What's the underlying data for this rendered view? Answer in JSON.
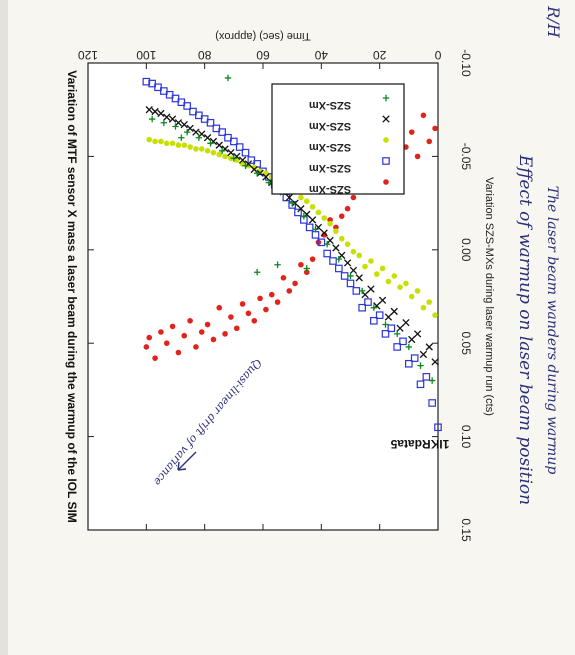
{
  "chart_data": {
    "type": "scatter",
    "rotation_degrees": 180,
    "title": "Variation of MTF sensor X mass a laser beam during the warmup of the IOL SIM",
    "subtitle": "1IKRdata5",
    "xlabel": "Time (sec) (approx)",
    "ylabel": "Variation SZS-MXs during laser warmup run (cts)",
    "xlim": [
      0,
      120
    ],
    "ylim": [
      -0.1,
      0.15
    ],
    "x_ticks": [
      "0",
      "20",
      "40",
      "60",
      "80",
      "100",
      "120"
    ],
    "y_ticks": [
      "-0.10",
      "-0.05",
      "0.00",
      "0.05",
      "0.10",
      "0.15"
    ],
    "grid": false,
    "legend_position": "top-right",
    "series": [
      {
        "name": "SZS-Xm",
        "marker": "circle",
        "color": "#e0241b",
        "points": [
          [
            1,
            -0.065
          ],
          [
            3,
            -0.058
          ],
          [
            5,
            -0.072
          ],
          [
            7,
            -0.05
          ],
          [
            9,
            -0.063
          ],
          [
            11,
            -0.055
          ],
          [
            13,
            -0.068
          ],
          [
            15,
            -0.047
          ],
          [
            17,
            -0.058
          ],
          [
            19,
            -0.042
          ],
          [
            21,
            -0.052
          ],
          [
            23,
            -0.038
          ],
          [
            25,
            -0.046
          ],
          [
            27,
            -0.035
          ],
          [
            29,
            -0.028
          ],
          [
            31,
            -0.022
          ],
          [
            33,
            -0.018
          ],
          [
            35,
            -0.012
          ],
          [
            37,
            -0.016
          ],
          [
            39,
            -0.008
          ],
          [
            41,
            -0.004
          ],
          [
            43,
            0.005
          ],
          [
            45,
            0.012
          ],
          [
            47,
            0.008
          ],
          [
            49,
            0.018
          ],
          [
            51,
            0.022
          ],
          [
            53,
            0.015
          ],
          [
            55,
            0.028
          ],
          [
            57,
            0.024
          ],
          [
            59,
            0.032
          ],
          [
            61,
            0.026
          ],
          [
            63,
            0.038
          ],
          [
            65,
            0.034
          ],
          [
            67,
            0.029
          ],
          [
            69,
            0.042
          ],
          [
            71,
            0.036
          ],
          [
            73,
            0.045
          ],
          [
            75,
            0.031
          ],
          [
            77,
            0.048
          ],
          [
            79,
            0.04
          ],
          [
            81,
            0.044
          ],
          [
            83,
            0.052
          ],
          [
            85,
            0.038
          ],
          [
            87,
            0.046
          ],
          [
            89,
            0.055
          ],
          [
            91,
            0.041
          ],
          [
            93,
            0.05
          ],
          [
            95,
            0.044
          ],
          [
            97,
            0.058
          ],
          [
            99,
            0.047
          ],
          [
            100,
            0.052
          ]
        ]
      },
      {
        "name": "SZS-Xm",
        "marker": "square",
        "color": "#2a35d8",
        "points": [
          [
            0,
            0.095
          ],
          [
            2,
            0.082
          ],
          [
            4,
            0.068
          ],
          [
            6,
            0.072
          ],
          [
            8,
            0.058
          ],
          [
            10,
            0.061
          ],
          [
            12,
            0.049
          ],
          [
            14,
            0.052
          ],
          [
            16,
            0.042
          ],
          [
            18,
            0.045
          ],
          [
            20,
            0.035
          ],
          [
            22,
            0.038
          ],
          [
            24,
            0.028
          ],
          [
            26,
            0.031
          ],
          [
            28,
            0.022
          ],
          [
            30,
            0.018
          ],
          [
            32,
            0.014
          ],
          [
            34,
            0.01
          ],
          [
            36,
            0.006
          ],
          [
            38,
            0.002
          ],
          [
            40,
            -0.004
          ],
          [
            42,
            -0.008
          ],
          [
            44,
            -0.012
          ],
          [
            46,
            -0.016
          ],
          [
            48,
            -0.02
          ],
          [
            50,
            -0.024
          ],
          [
            52,
            -0.028
          ],
          [
            54,
            -0.032
          ],
          [
            56,
            -0.035
          ],
          [
            58,
            -0.039
          ],
          [
            60,
            -0.042
          ],
          [
            62,
            -0.046
          ],
          [
            64,
            -0.048
          ],
          [
            66,
            -0.052
          ],
          [
            68,
            -0.055
          ],
          [
            70,
            -0.058
          ],
          [
            72,
            -0.06
          ],
          [
            74,
            -0.063
          ],
          [
            76,
            -0.065
          ],
          [
            78,
            -0.068
          ],
          [
            80,
            -0.07
          ],
          [
            82,
            -0.072
          ],
          [
            84,
            -0.074
          ],
          [
            86,
            -0.077
          ],
          [
            88,
            -0.079
          ],
          [
            90,
            -0.081
          ],
          [
            92,
            -0.083
          ],
          [
            94,
            -0.085
          ],
          [
            96,
            -0.087
          ],
          [
            98,
            -0.089
          ],
          [
            100,
            -0.09
          ]
        ]
      },
      {
        "name": "SZS-Xm",
        "marker": "circle",
        "color": "#c8e000",
        "points": [
          [
            1,
            0.035
          ],
          [
            3,
            0.028
          ],
          [
            5,
            0.031
          ],
          [
            7,
            0.022
          ],
          [
            9,
            0.025
          ],
          [
            11,
            0.018
          ],
          [
            13,
            0.02
          ],
          [
            15,
            0.014
          ],
          [
            17,
            0.017
          ],
          [
            19,
            0.01
          ],
          [
            21,
            0.013
          ],
          [
            23,
            0.006
          ],
          [
            25,
            0.009
          ],
          [
            27,
            0.003
          ],
          [
            29,
            0.001
          ],
          [
            31,
            -0.003
          ],
          [
            33,
            -0.006
          ],
          [
            35,
            -0.01
          ],
          [
            37,
            -0.014
          ],
          [
            39,
            -0.017
          ],
          [
            41,
            -0.02
          ],
          [
            43,
            -0.023
          ],
          [
            45,
            -0.026
          ],
          [
            47,
            -0.028
          ],
          [
            49,
            -0.031
          ],
          [
            51,
            -0.033
          ],
          [
            53,
            -0.035
          ],
          [
            55,
            -0.037
          ],
          [
            57,
            -0.039
          ],
          [
            59,
            -0.041
          ],
          [
            61,
            -0.042
          ],
          [
            63,
            -0.044
          ],
          [
            65,
            -0.045
          ],
          [
            67,
            -0.046
          ],
          [
            69,
            -0.048
          ],
          [
            71,
            -0.049
          ],
          [
            73,
            -0.05
          ],
          [
            75,
            -0.051
          ],
          [
            77,
            -0.052
          ],
          [
            79,
            -0.053
          ],
          [
            81,
            -0.054
          ],
          [
            83,
            -0.054
          ],
          [
            85,
            -0.055
          ],
          [
            87,
            -0.056
          ],
          [
            89,
            -0.056
          ],
          [
            91,
            -0.057
          ],
          [
            93,
            -0.057
          ],
          [
            95,
            -0.058
          ],
          [
            97,
            -0.058
          ],
          [
            99,
            -0.059
          ]
        ]
      },
      {
        "name": "SZS-Xm",
        "marker": "x",
        "color": "#111111",
        "points": [
          [
            1,
            0.06
          ],
          [
            3,
            0.052
          ],
          [
            5,
            0.056
          ],
          [
            7,
            0.045
          ],
          [
            9,
            0.048
          ],
          [
            11,
            0.039
          ],
          [
            13,
            0.042
          ],
          [
            15,
            0.033
          ],
          [
            17,
            0.036
          ],
          [
            19,
            0.027
          ],
          [
            21,
            0.03
          ],
          [
            23,
            0.021
          ],
          [
            25,
            0.024
          ],
          [
            27,
            0.015
          ],
          [
            29,
            0.011
          ],
          [
            31,
            0.007
          ],
          [
            33,
            0.003
          ],
          [
            35,
            -0.001
          ],
          [
            37,
            -0.005
          ],
          [
            39,
            -0.009
          ],
          [
            41,
            -0.012
          ],
          [
            43,
            -0.016
          ],
          [
            45,
            -0.019
          ],
          [
            47,
            -0.022
          ],
          [
            49,
            -0.025
          ],
          [
            51,
            -0.028
          ],
          [
            53,
            -0.031
          ],
          [
            55,
            -0.034
          ],
          [
            57,
            -0.036
          ],
          [
            59,
            -0.039
          ],
          [
            61,
            -0.041
          ],
          [
            63,
            -0.043
          ],
          [
            65,
            -0.046
          ],
          [
            67,
            -0.048
          ],
          [
            69,
            -0.05
          ],
          [
            71,
            -0.052
          ],
          [
            73,
            -0.054
          ],
          [
            75,
            -0.056
          ],
          [
            77,
            -0.058
          ],
          [
            79,
            -0.06
          ],
          [
            81,
            -0.062
          ],
          [
            83,
            -0.063
          ],
          [
            85,
            -0.065
          ],
          [
            87,
            -0.067
          ],
          [
            89,
            -0.068
          ],
          [
            91,
            -0.07
          ],
          [
            93,
            -0.071
          ],
          [
            95,
            -0.073
          ],
          [
            97,
            -0.074
          ],
          [
            99,
            -0.075
          ]
        ]
      },
      {
        "name": "SZS-Xm",
        "marker": "plus",
        "color": "#0a8a1a",
        "points": [
          [
            2,
            0.07
          ],
          [
            6,
            0.062
          ],
          [
            10,
            0.052
          ],
          [
            14,
            0.045
          ],
          [
            18,
            0.04
          ],
          [
            22,
            0.031
          ],
          [
            26,
            0.022
          ],
          [
            30,
            0.014
          ],
          [
            34,
            0.005
          ],
          [
            38,
            -0.003
          ],
          [
            42,
            -0.011
          ],
          [
            46,
            -0.018
          ],
          [
            50,
            -0.025
          ],
          [
            54,
            -0.031
          ],
          [
            58,
            -0.036
          ],
          [
            62,
            -0.041
          ],
          [
            66,
            -0.045
          ],
          [
            70,
            -0.049
          ],
          [
            74,
            -0.053
          ],
          [
            78,
            -0.057
          ],
          [
            82,
            -0.06
          ],
          [
            86,
            -0.063
          ],
          [
            90,
            -0.066
          ],
          [
            94,
            -0.068
          ],
          [
            98,
            -0.07
          ],
          [
            45,
            0.01
          ],
          [
            62,
            0.012
          ],
          [
            55,
            0.008
          ],
          [
            72,
            -0.092
          ],
          [
            88,
            -0.06
          ]
        ]
      }
    ]
  },
  "annotations": {
    "handwritten_top": "Effect of warmup on laser beam position",
    "handwritten_top2": "The laser beam wanders during warmup",
    "handwritten_arrow_note": "Quasi-linear drift of variance",
    "corner_initials": "R/H"
  }
}
